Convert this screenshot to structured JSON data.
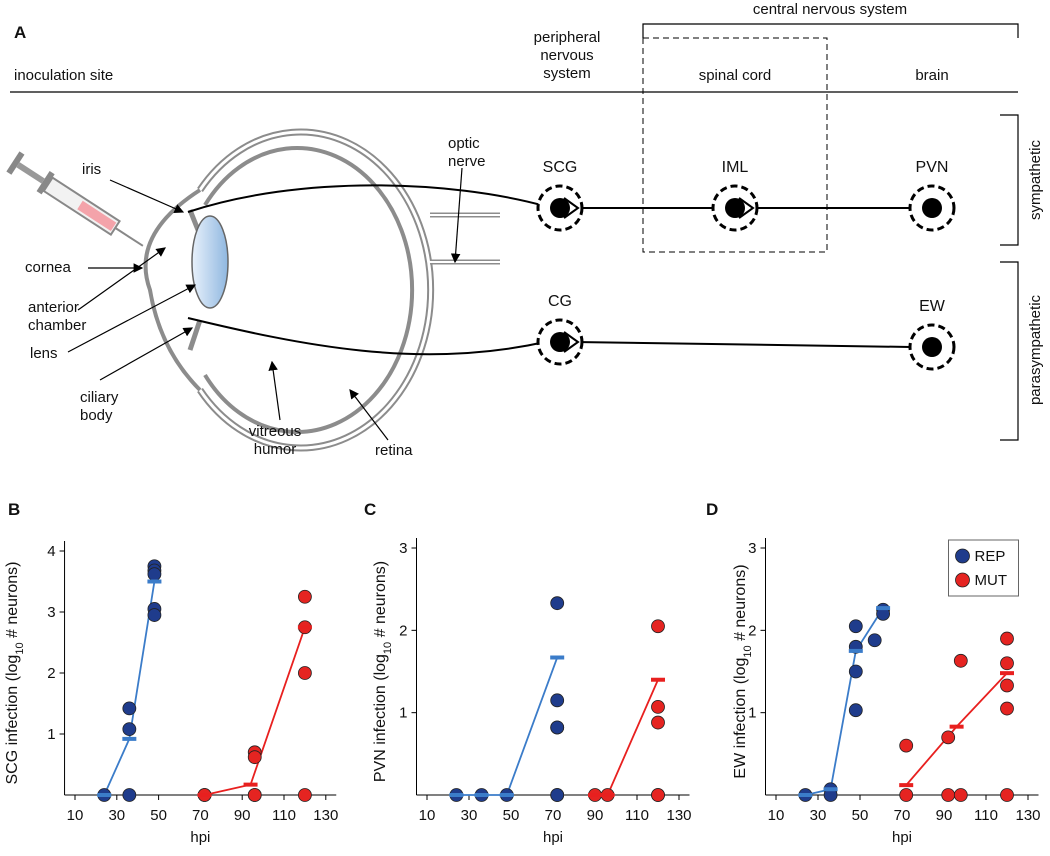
{
  "diagram": {
    "panel": "A",
    "inoculation_site": "inoculation site",
    "pns": [
      "peripheral",
      "nervous",
      "system"
    ],
    "cns": "central nervous system",
    "spinal_cord": "spinal cord",
    "brain": "brain",
    "sympathetic": "sympathetic",
    "parasympathetic": "parasympathetic",
    "eye_labels": {
      "iris": "iris",
      "optic_nerve": [
        "optic",
        "nerve"
      ],
      "cornea": "cornea",
      "anterior_chamber": [
        "anterior",
        "chamber"
      ],
      "lens": "lens",
      "ciliary_body": [
        "ciliary",
        "body"
      ],
      "vitreous_humor": [
        "vitreous",
        "humor"
      ],
      "retina": "retina"
    },
    "nodes": [
      "SCG",
      "IML",
      "PVN",
      "CG",
      "EW"
    ]
  },
  "chart_data": [
    {
      "type": "scatter",
      "panel": "B",
      "y_label": [
        "SCG infection (log",
        "10",
        " # neurons)"
      ],
      "x_label": "hpi",
      "xlim": [
        5,
        135
      ],
      "xticks": [
        10,
        30,
        50,
        70,
        90,
        110,
        130
      ],
      "ylim": [
        0,
        4
      ],
      "yticks": [
        1,
        2,
        3,
        4
      ],
      "series": [
        {
          "color": "#1f3c8c",
          "mean_color": "#3b7cc9",
          "x": [
            24,
            36,
            36,
            36,
            48,
            48,
            48,
            48,
            48
          ],
          "values": [
            0,
            1.42,
            1.08,
            0,
            3.75,
            3.68,
            3.62,
            3.05,
            2.95
          ],
          "mean": {
            "x": [
              24,
              36,
              48
            ],
            "values": [
              0,
              0.92,
              3.5
            ]
          }
        },
        {
          "color": "#e52421",
          "mean_color": "#e8201f",
          "x": [
            72,
            72,
            96,
            96,
            96,
            96,
            120,
            120,
            120,
            120
          ],
          "values": [
            0,
            0,
            0.7,
            0.62,
            0,
            0,
            3.25,
            2.75,
            2.0,
            0
          ],
          "mean": {
            "x": [
              72,
              94,
              120
            ],
            "values": [
              0,
              0.17,
              2.75
            ]
          }
        }
      ]
    },
    {
      "type": "scatter",
      "panel": "C",
      "y_label": [
        "PVN infection (log",
        "10",
        " # neurons)"
      ],
      "x_label": "hpi",
      "xlim": [
        5,
        135
      ],
      "xticks": [
        10,
        30,
        50,
        70,
        90,
        110,
        130
      ],
      "ylim": [
        0,
        3
      ],
      "yticks": [
        1,
        2,
        3
      ],
      "series": [
        {
          "color": "#1f3c8c",
          "mean_color": "#3b7cc9",
          "x": [
            24,
            36,
            48,
            72,
            72,
            72,
            72,
            72,
            72
          ],
          "values": [
            0,
            0,
            0,
            2.33,
            1.15,
            0.82,
            0.82,
            0,
            0
          ],
          "mean": {
            "x": [
              24,
              36,
              48,
              72
            ],
            "values": [
              0,
              0,
              0,
              1.67
            ]
          }
        },
        {
          "color": "#e52421",
          "mean_color": "#e8201f",
          "x": [
            90,
            96,
            120,
            120,
            120,
            120,
            120
          ],
          "values": [
            0,
            0,
            2.05,
            1.07,
            0.88,
            0,
            0
          ],
          "mean": {
            "x": [
              90,
              96,
              120
            ],
            "values": [
              0,
              0,
              1.4
            ]
          }
        }
      ]
    },
    {
      "type": "scatter",
      "panel": "D",
      "y_label": [
        "EW infection (log",
        "10",
        " # neurons)"
      ],
      "x_label": "hpi",
      "xlim": [
        5,
        135
      ],
      "xticks": [
        10,
        30,
        50,
        70,
        90,
        110,
        130
      ],
      "ylim": [
        0,
        3
      ],
      "yticks": [
        1,
        2,
        3
      ],
      "legend": "top-right",
      "series": [
        {
          "name": "REP",
          "color": "#1f3c8c",
          "mean_color": "#3b7cc9",
          "x": [
            24,
            36,
            36,
            48,
            48,
            48,
            48,
            57,
            61,
            61
          ],
          "values": [
            0,
            0.07,
            0,
            2.05,
            1.8,
            1.5,
            1.03,
            1.88,
            2.25,
            2.2
          ],
          "mean": {
            "x": [
              24,
              36,
              48,
              61
            ],
            "values": [
              0,
              0.07,
              1.75,
              2.27
            ]
          }
        },
        {
          "name": "MUT",
          "color": "#e52421",
          "mean_color": "#e8201f",
          "x": [
            72,
            72,
            92,
            92,
            98,
            98,
            120,
            120,
            120,
            120,
            120
          ],
          "values": [
            0.6,
            0,
            0.7,
            0,
            1.63,
            0,
            1.9,
            1.6,
            1.33,
            1.05,
            0
          ],
          "mean": {
            "x": [
              72,
              96,
              120
            ],
            "values": [
              0.12,
              0.83,
              1.48
            ]
          }
        }
      ]
    }
  ]
}
